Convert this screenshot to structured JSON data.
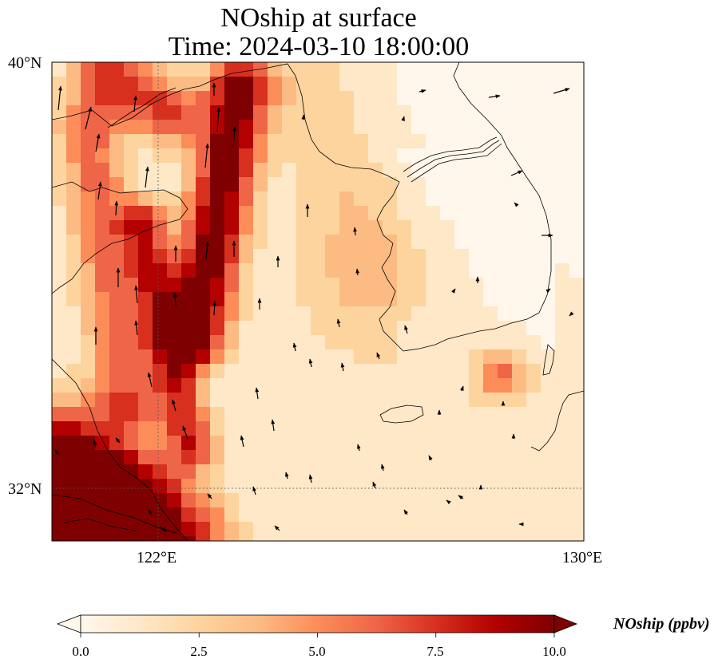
{
  "title": "NOship at surface",
  "subtitle": "Time: 2024-03-10 18:00:00",
  "map": {
    "lon_range": [
      119.5,
      130
    ],
    "lat_range": [
      31,
      40
    ],
    "gridlines": {
      "lon": [
        122
      ],
      "lat": [
        32
      ],
      "style": "dotted"
    },
    "lon_labels": [
      "122°E",
      "130°E"
    ],
    "lat_labels": [
      "40°N",
      "32°N"
    ],
    "field": "NOship",
    "units": "ppbv",
    "overlay": "wind vectors"
  },
  "colorbar": {
    "label": "NOship (ppbv)",
    "colormap": "OrRd",
    "range": [
      0,
      10
    ],
    "extend": "both",
    "ticks": [
      "0.0",
      "2.5",
      "5.0",
      "7.5",
      "10.0"
    ],
    "colors": [
      "#fff7ec",
      "#fee8c8",
      "#fdd49e",
      "#fdbb84",
      "#fc8d59",
      "#ef6548",
      "#d7301f",
      "#b30000",
      "#7f0000"
    ]
  }
}
